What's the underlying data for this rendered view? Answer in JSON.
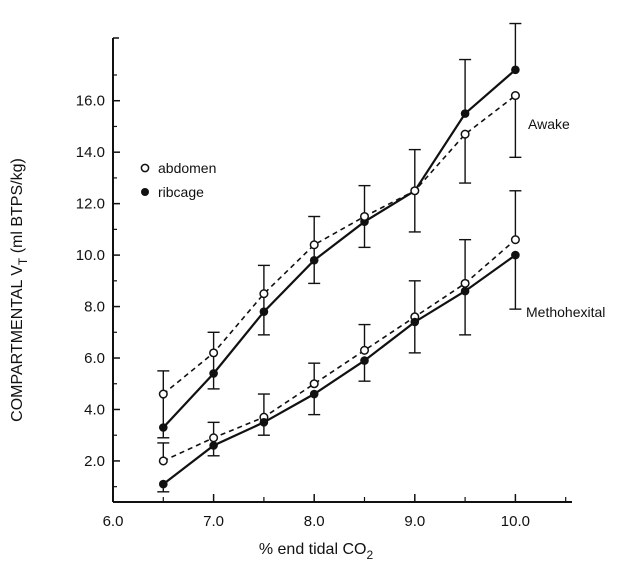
{
  "chart_data": {
    "type": "line",
    "xlabel_parts": {
      "main": "% end tidal CO",
      "sub": "2"
    },
    "ylabel_parts": {
      "main": "COMPARTMENTAL  V",
      "sub": "T",
      "tail": "  (ml BTPS/kg)"
    },
    "xlim": [
      6.0,
      10.5
    ],
    "ylim": [
      0,
      17.5
    ],
    "x_ticks": [
      "6.0",
      "7.0",
      "8.0",
      "9.0",
      "10.0"
    ],
    "y_ticks": [
      "2.0",
      "4.0",
      "6.0",
      "8.0",
      "10.0",
      "12.0",
      "14.0",
      "16.0"
    ],
    "x": [
      6.5,
      7.0,
      7.5,
      8.0,
      8.5,
      9.0,
      9.5,
      10.0
    ],
    "legend": [
      {
        "label": "abdomen",
        "marker": "open-circle",
        "line": "dashed"
      },
      {
        "label": "ribcage",
        "marker": "filled-circle",
        "line": "solid"
      }
    ],
    "annotations": [
      "Awake",
      "Methohexital"
    ],
    "series": [
      {
        "condition": "Awake",
        "compartment": "ribcage",
        "marker": "filled-circle",
        "line": "solid",
        "values": [
          3.3,
          5.4,
          7.8,
          9.8,
          11.3,
          12.5,
          15.5,
          17.2
        ],
        "error_upper": [
          null,
          null,
          null,
          11.5,
          12.7,
          14.1,
          17.6,
          19.0
        ],
        "error_lower": [
          null,
          null,
          null,
          8.9,
          10.3,
          10.9,
          null,
          null
        ]
      },
      {
        "condition": "Awake",
        "compartment": "abdomen",
        "marker": "open-circle",
        "line": "dashed",
        "values": [
          4.6,
          6.2,
          8.5,
          10.4,
          11.5,
          12.5,
          14.7,
          16.2
        ],
        "error_upper": [
          5.5,
          7.0,
          9.6,
          null,
          null,
          null,
          null,
          null
        ],
        "error_lower": [
          2.9,
          4.8,
          6.9,
          null,
          null,
          null,
          12.8,
          13.8
        ]
      },
      {
        "condition": "Methohexital",
        "compartment": "abdomen",
        "marker": "open-circle",
        "line": "dashed",
        "values": [
          2.0,
          2.9,
          3.7,
          5.0,
          6.3,
          7.6,
          8.9,
          10.6
        ],
        "error_upper": [
          2.7,
          3.5,
          4.6,
          5.8,
          7.3,
          9.0,
          10.6,
          12.5
        ],
        "error_lower": [
          null,
          null,
          null,
          null,
          null,
          null,
          null,
          null
        ]
      },
      {
        "condition": "Methohexital",
        "compartment": "ribcage",
        "marker": "filled-circle",
        "line": "solid",
        "values": [
          1.1,
          2.6,
          3.5,
          4.6,
          5.9,
          7.4,
          8.6,
          10.0
        ],
        "error_upper": [
          null,
          null,
          null,
          null,
          null,
          null,
          null,
          null
        ],
        "error_lower": [
          0.8,
          2.2,
          3.0,
          3.8,
          5.1,
          6.2,
          6.9,
          7.9
        ]
      }
    ]
  }
}
